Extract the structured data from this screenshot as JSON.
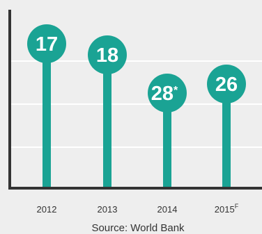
{
  "chart_data": {
    "type": "bar",
    "categories": [
      "2012",
      "2013",
      "2014",
      "2015"
    ],
    "category_superscripts": [
      "",
      "",
      "",
      "F"
    ],
    "values": [
      17,
      18,
      28,
      26
    ],
    "value_suffixes": [
      "",
      "",
      "*",
      ""
    ],
    "title": "",
    "xlabel": "",
    "ylabel": "",
    "grid": true,
    "legend": "none",
    "note": "Source: World Bank",
    "colors": {
      "accent": "#1aa394",
      "axis": "#333333",
      "grid": "#ffffff",
      "background": "#eeeeee",
      "plot_background": "#ffffff"
    }
  }
}
